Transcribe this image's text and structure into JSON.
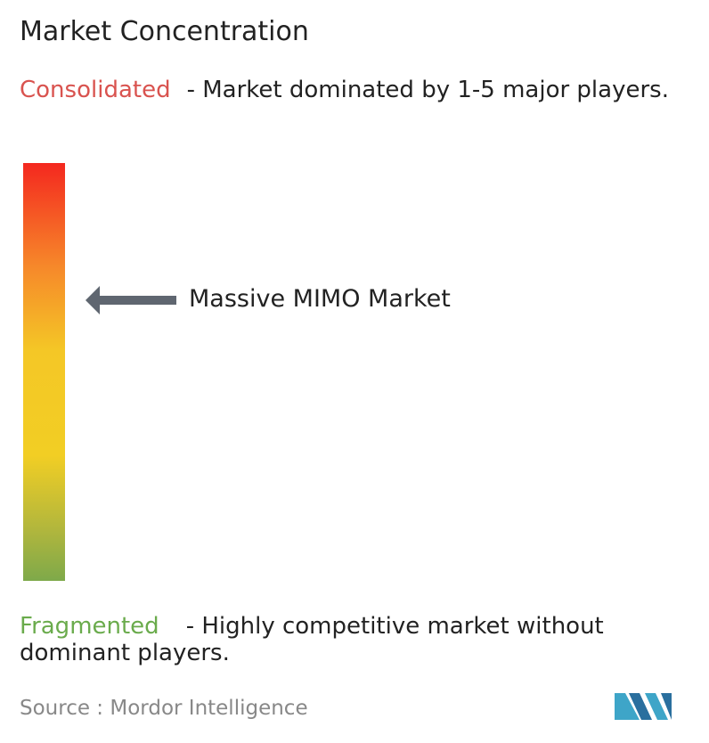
{
  "title": "Market Concentration",
  "consolidated": {
    "label": "Consolidated",
    "description": "- Market dominated by 1-5 major players."
  },
  "market_label": "Massive MIMO Market",
  "fragmented": {
    "label": "Fragmented",
    "description": "- Highly competitive market without dominant players."
  },
  "source": {
    "label": "Source :",
    "name": "Mordor Intelligence"
  }
}
